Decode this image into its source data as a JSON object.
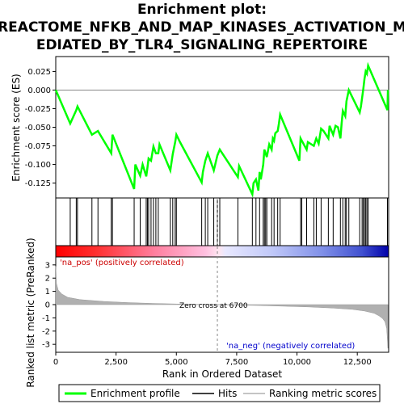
{
  "title_lines": [
    "Enrichment plot:",
    "REACTOME_NFKB_AND_MAP_KINASES_ACTIVATION_M",
    "EDIATED_BY_TLR4_SIGNALING_REPERTOIRE"
  ],
  "colors": {
    "enrichment_line": "#00ff00",
    "hits": "#000000",
    "metric_fill": "#b0b0b0",
    "zero_line": "#888888",
    "pos_text": "#cc0000",
    "neg_text": "#0000cc"
  },
  "chart_data": [
    {
      "type": "line",
      "name": "enrichment-profile",
      "ylabel": "Enrichment score (ES)",
      "xlim": [
        0,
        13800
      ],
      "ylim": [
        -0.145,
        0.045
      ],
      "yticks": [
        0.025,
        0.0,
        -0.025,
        -0.05,
        -0.075,
        -0.1,
        -0.125
      ],
      "ytick_labels": [
        "0.025",
        "0.000",
        "-0.025",
        "-0.050",
        "-0.075",
        "-0.100",
        "-0.125"
      ],
      "grid": false,
      "x": [
        0,
        600,
        850,
        900,
        1500,
        1750,
        2300,
        2350,
        3250,
        3300,
        3500,
        3600,
        3750,
        3800,
        3850,
        3950,
        4050,
        4150,
        4250,
        4300,
        4750,
        4850,
        4950,
        5000,
        5150,
        6050,
        6100,
        6200,
        6300,
        6550,
        6700,
        6800,
        7550,
        7600,
        8150,
        8200,
        8300,
        8400,
        8450,
        8500,
        8600,
        8650,
        8700,
        8750,
        8850,
        8950,
        9000,
        9050,
        9100,
        9200,
        9250,
        9300,
        10100,
        10150,
        10200,
        10400,
        10450,
        10700,
        10800,
        10900,
        11000,
        11100,
        11300,
        11350,
        11500,
        11600,
        11700,
        11800,
        11850,
        11900,
        12000,
        12050,
        12150,
        12600,
        12650,
        12700,
        12750,
        12800,
        12850,
        12900,
        12950,
        13750,
        13770
      ],
      "y": [
        0.0,
        -0.045,
        -0.027,
        -0.022,
        -0.06,
        -0.055,
        -0.085,
        -0.06,
        -0.133,
        -0.1,
        -0.115,
        -0.1,
        -0.116,
        -0.105,
        -0.092,
        -0.095,
        -0.076,
        -0.085,
        -0.085,
        -0.073,
        -0.108,
        -0.086,
        -0.07,
        -0.06,
        -0.07,
        -0.124,
        -0.11,
        -0.095,
        -0.085,
        -0.108,
        -0.088,
        -0.08,
        -0.117,
        -0.102,
        -0.14,
        -0.125,
        -0.12,
        -0.135,
        -0.11,
        -0.12,
        -0.1,
        -0.08,
        -0.085,
        -0.09,
        -0.073,
        -0.08,
        -0.065,
        -0.068,
        -0.058,
        -0.055,
        -0.045,
        -0.033,
        -0.095,
        -0.065,
        -0.068,
        -0.08,
        -0.07,
        -0.075,
        -0.065,
        -0.072,
        -0.052,
        -0.055,
        -0.065,
        -0.048,
        -0.06,
        -0.048,
        -0.05,
        -0.065,
        -0.045,
        -0.028,
        -0.035,
        -0.015,
        0.0,
        -0.03,
        -0.022,
        -0.01,
        0.002,
        0.015,
        0.025,
        0.022,
        0.033,
        -0.027,
        0.0
      ]
    },
    {
      "type": "hits",
      "name": "hits",
      "positions": [
        600,
        850,
        900,
        1500,
        1750,
        2300,
        2350,
        3250,
        3500,
        3750,
        3800,
        3850,
        3950,
        4050,
        4150,
        4250,
        4750,
        4850,
        4950,
        5000,
        6050,
        6200,
        6300,
        6550,
        6700,
        6800,
        7550,
        8150,
        8300,
        8450,
        8600,
        8650,
        8700,
        8750,
        8950,
        9050,
        9200,
        9300,
        10150,
        10200,
        10400,
        10700,
        10800,
        11000,
        11300,
        11500,
        11800,
        11900,
        12000,
        12050,
        12150,
        12600,
        12700,
        12750,
        12800,
        12850,
        12900,
        12950,
        13750
      ]
    },
    {
      "type": "area",
      "name": "ranked-list-metric",
      "ylabel": "Ranked list metric (PreRanked)",
      "xlabel": "Rank in Ordered Dataset",
      "xlim": [
        0,
        13800
      ],
      "ylim": [
        -3.6,
        3.6
      ],
      "yticks": [
        3,
        2,
        1,
        0,
        -1,
        -2,
        -3
      ],
      "ytick_labels": [
        "3",
        "2",
        "1",
        "0",
        "-1",
        "-2",
        "-3"
      ],
      "xticks": [
        0,
        2500,
        5000,
        7500,
        10000,
        12500
      ],
      "xtick_labels": [
        "0",
        "2,500",
        "5,000",
        "7,500",
        "10,000",
        "12,500"
      ],
      "x": [
        0,
        30,
        100,
        250,
        500,
        1000,
        2000,
        3000,
        4000,
        5000,
        6000,
        6700,
        7500,
        8500,
        9500,
        10500,
        11500,
        12300,
        12800,
        13200,
        13400,
        13550,
        13650,
        13720,
        13770
      ],
      "y": [
        2.9,
        1.6,
        1.1,
        0.8,
        0.55,
        0.38,
        0.24,
        0.15,
        0.09,
        0.05,
        0.02,
        0.0,
        -0.03,
        -0.07,
        -0.12,
        -0.18,
        -0.26,
        -0.36,
        -0.48,
        -0.65,
        -0.85,
        -1.05,
        -1.3,
        -1.8,
        -3.3
      ]
    }
  ],
  "annotations": {
    "pos_label": "'na_pos' (positively correlated)",
    "neg_label": "'na_neg' (negatively correlated)",
    "zero_cross_label": "Zero cross at 6700",
    "zero_cross_value": 6700
  },
  "legend": {
    "items": [
      {
        "label": "Enrichment profile",
        "color": "#00ff00",
        "kind": "thick-line"
      },
      {
        "label": "Hits",
        "color": "#000000",
        "kind": "line"
      },
      {
        "label": "Ranking metric scores",
        "color": "#b0b0b0",
        "kind": "line"
      }
    ]
  }
}
